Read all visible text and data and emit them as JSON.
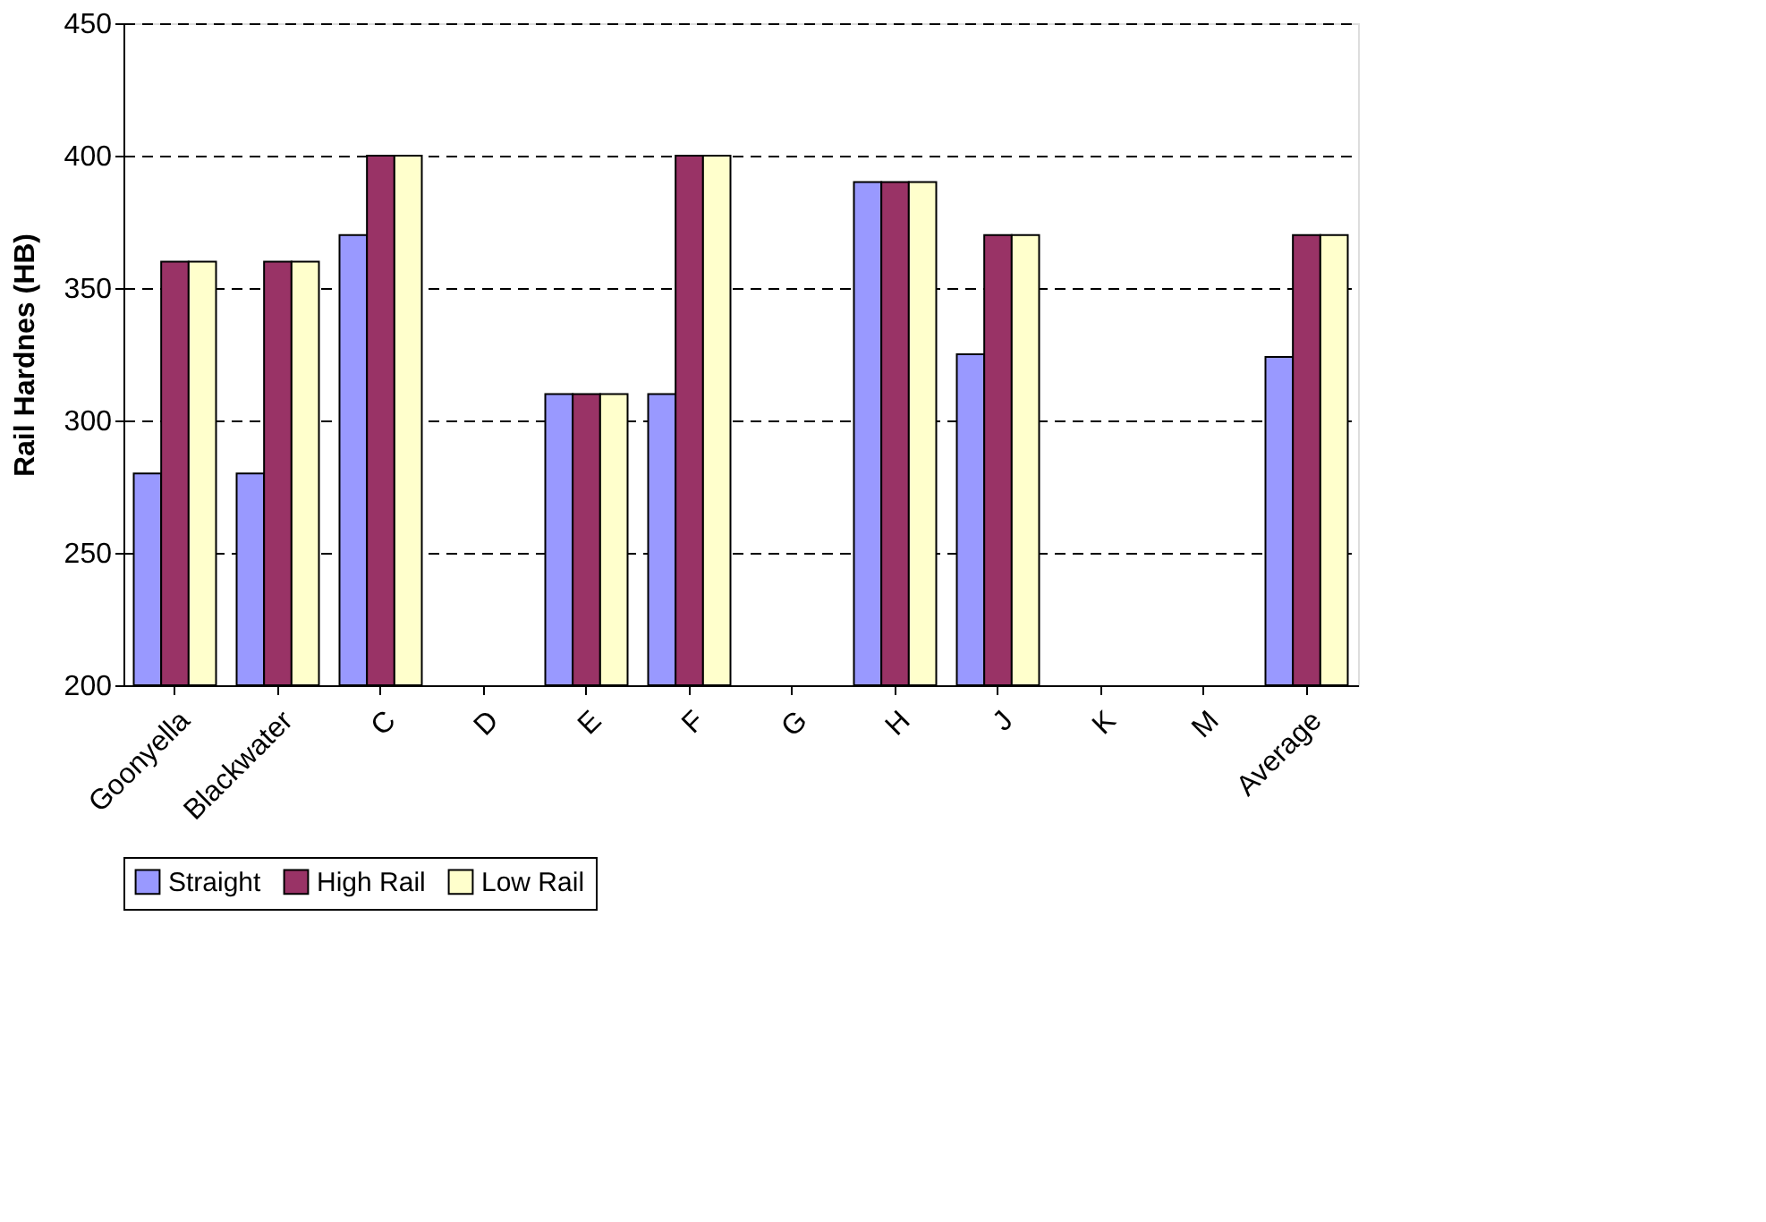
{
  "chart_data": {
    "type": "bar",
    "ylabel": "Rail Hardnes (HB)",
    "categories": [
      "Goonyella",
      "Blackwater",
      "C",
      "D",
      "E",
      "F",
      "G",
      "H",
      "J",
      "K",
      "M",
      "Average"
    ],
    "series": [
      {
        "name": "Straight",
        "color": "#9999ff",
        "values": [
          280,
          280,
          370,
          null,
          310,
          310,
          null,
          390,
          325,
          null,
          null,
          324
        ]
      },
      {
        "name": "High Rail",
        "color": "#993366",
        "values": [
          360,
          360,
          400,
          null,
          310,
          400,
          null,
          390,
          370,
          null,
          null,
          370
        ]
      },
      {
        "name": "Low Rail",
        "color": "#ffffcc",
        "values": [
          360,
          360,
          400,
          null,
          310,
          400,
          null,
          390,
          370,
          null,
          null,
          370
        ]
      }
    ],
    "ylim": [
      200,
      450
    ],
    "yticks": [
      200,
      250,
      300,
      350,
      400,
      450
    ],
    "grid": "y",
    "line_style": "dashed",
    "legend": "bottom"
  }
}
